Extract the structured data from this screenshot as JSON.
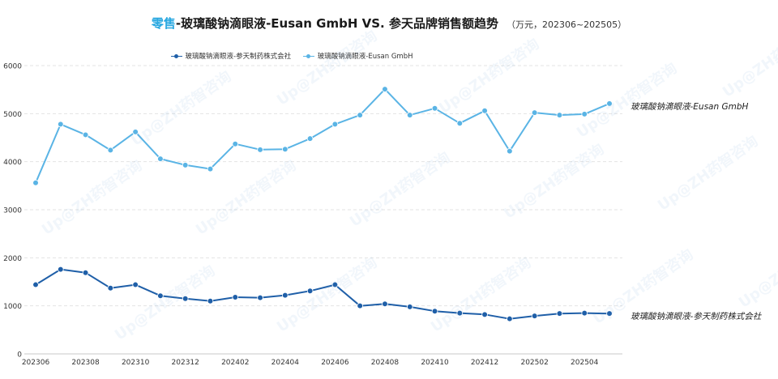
{
  "title": {
    "accent": "零售",
    "main": "-玻璃酸钠滴眼液-Eusan GmbH VS. 参天品牌销售额趋势",
    "subtitle": "（万元，202306~202505）"
  },
  "watermark": "Up@ZH药智咨询",
  "colors": {
    "series_santen": "#1f5fa8",
    "series_eusan": "#5ab4e5",
    "accent": "#29a8e0",
    "grid": "#e3e3e3",
    "axis_text": "#333333"
  },
  "chart_data": {
    "type": "line",
    "x": [
      "202306",
      "202307",
      "202308",
      "202309",
      "202310",
      "202311",
      "202312",
      "202401",
      "202402",
      "202403",
      "202404",
      "202405",
      "202406",
      "202407",
      "202408",
      "202409",
      "202410",
      "202411",
      "202412",
      "202501",
      "202502",
      "202503",
      "202504",
      "202505"
    ],
    "x_tick_labels": [
      "202306",
      "202308",
      "202310",
      "202312",
      "202402",
      "202404",
      "202406",
      "202408",
      "202410",
      "202412",
      "202502",
      "202504"
    ],
    "ylim": [
      0,
      6000
    ],
    "y_ticks": [
      0,
      1000,
      2000,
      3000,
      4000,
      5000,
      6000
    ],
    "grid": "horizontal dashed",
    "legend_position": "top-center",
    "series": [
      {
        "name": "玻璃酸钠滴眼液-参天制药株式会社",
        "end_label": "玻璃酸钠滴眼液-参天制药株式会社",
        "color": "#1f5fa8",
        "values": [
          1440,
          1760,
          1690,
          1370,
          1440,
          1210,
          1150,
          1100,
          1180,
          1170,
          1220,
          1310,
          1440,
          1000,
          1040,
          980,
          890,
          850,
          820,
          730,
          790,
          840,
          850,
          840
        ]
      },
      {
        "name": "玻璃酸钠滴眼液-Eusan GmbH",
        "end_label": "玻璃酸钠滴眼液-Eusan GmbH",
        "color": "#5ab4e5",
        "values": [
          3560,
          4780,
          4560,
          4240,
          4620,
          4060,
          3930,
          3850,
          4370,
          4250,
          4260,
          4480,
          4780,
          4970,
          5510,
          4970,
          5110,
          4800,
          5060,
          4220,
          5020,
          4970,
          4990,
          5210
        ]
      }
    ]
  }
}
